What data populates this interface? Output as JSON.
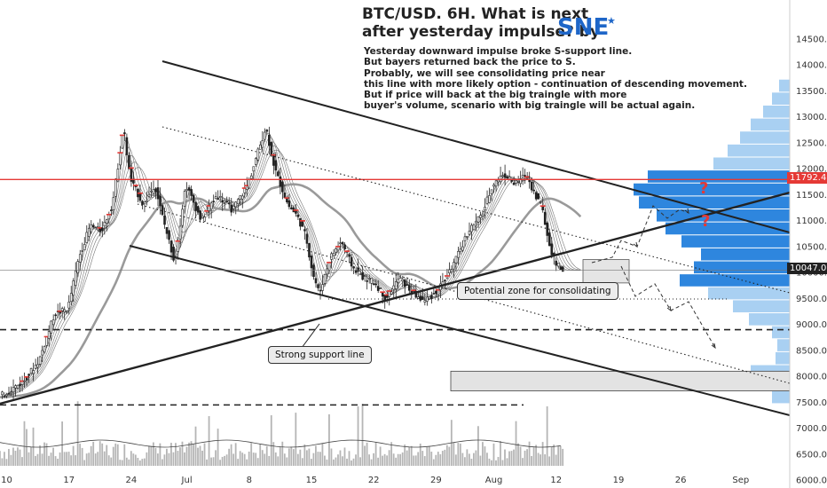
{
  "chart_data": {
    "type": "candlestick",
    "title_lines": [
      "BTC/USD. 6H. What is next",
      "after yesterday impulse? by"
    ],
    "brand": "SNE",
    "description_lines": [
      "Yesterday downward impulse broke S-support line.",
      "But bayers returned back the price to S.",
      "Probably, we will see consolidating price near",
      "this line with more likely option - continuation of descending movement.",
      "But if price will back at the big traingle with more",
      "buyer's volume, scenario with big traingle will be actual again."
    ],
    "y_ticks": [
      14500,
      14000,
      13500,
      13000,
      12500,
      12000,
      11500,
      11000,
      10500,
      10000,
      9500,
      9000,
      8500,
      8000,
      7500,
      7000,
      6500,
      6000
    ],
    "y_tick_labels": [
      "14500.0",
      "14000.0",
      "13500.0",
      "13000.0",
      "12500.0",
      "12000.0",
      "11500.0",
      "11000.0",
      "10500.0",
      "10000.0",
      "9500.0",
      "9000.0",
      "8500.0",
      "8000.0",
      "7500.0",
      "7000.0",
      "6500.0",
      "6000.0"
    ],
    "ylim": [
      5850,
      15250
    ],
    "x_ticks": [
      {
        "label": "10",
        "x": 0
      },
      {
        "label": "17",
        "x": 28
      },
      {
        "label": "24",
        "x": 56
      },
      {
        "label": "Jul",
        "x": 81
      },
      {
        "label": "8",
        "x": 109
      },
      {
        "label": "15",
        "x": 137
      },
      {
        "label": "22",
        "x": 165
      },
      {
        "label": "29",
        "x": 193
      },
      {
        "label": "Aug",
        "x": 219
      },
      {
        "label": "12",
        "x": 247
      },
      {
        "label": "19",
        "x": 275
      },
      {
        "label": "26",
        "x": 303
      },
      {
        "label": "Sep",
        "x": 330
      }
    ],
    "xlim": [
      -3,
      352
    ],
    "price_tags": [
      {
        "value": 11792.4,
        "label": "11792.4",
        "bg": "#e53935",
        "fg": "#ffffff"
      },
      {
        "value": 10047.0,
        "label": "10047.0",
        "bg": "#222222",
        "fg": "#ffffff"
      }
    ],
    "annotations": {
      "strong_support": "Strong support line",
      "consolidation": "Potential zone for consolidating"
    },
    "key_points": [
      {
        "x": -3,
        "y": 7600
      },
      {
        "x": 8,
        "y": 7900
      },
      {
        "x": 15,
        "y": 8300
      },
      {
        "x": 22,
        "y": 9200
      },
      {
        "x": 28,
        "y": 9300
      },
      {
        "x": 33,
        "y": 10300
      },
      {
        "x": 38,
        "y": 10900
      },
      {
        "x": 43,
        "y": 10800
      },
      {
        "x": 48,
        "y": 11300
      },
      {
        "x": 53,
        "y": 12800
      },
      {
        "x": 56,
        "y": 11800
      },
      {
        "x": 62,
        "y": 11300
      },
      {
        "x": 67,
        "y": 11700
      },
      {
        "x": 71,
        "y": 11000
      },
      {
        "x": 76,
        "y": 10200
      },
      {
        "x": 81,
        "y": 11700
      },
      {
        "x": 88,
        "y": 11000
      },
      {
        "x": 95,
        "y": 11500
      },
      {
        "x": 102,
        "y": 11200
      },
      {
        "x": 109,
        "y": 11700
      },
      {
        "x": 114,
        "y": 12400
      },
      {
        "x": 117,
        "y": 12800
      },
      {
        "x": 121,
        "y": 12000
      },
      {
        "x": 127,
        "y": 11300
      },
      {
        "x": 131,
        "y": 11100
      },
      {
        "x": 135,
        "y": 10700
      },
      {
        "x": 138,
        "y": 10000
      },
      {
        "x": 141,
        "y": 9600
      },
      {
        "x": 146,
        "y": 10300
      },
      {
        "x": 151,
        "y": 10600
      },
      {
        "x": 156,
        "y": 10100
      },
      {
        "x": 161,
        "y": 9900
      },
      {
        "x": 166,
        "y": 9800
      },
      {
        "x": 171,
        "y": 9500
      },
      {
        "x": 177,
        "y": 9900
      },
      {
        "x": 183,
        "y": 9600
      },
      {
        "x": 188,
        "y": 9450
      },
      {
        "x": 193,
        "y": 9600
      },
      {
        "x": 198,
        "y": 9900
      },
      {
        "x": 203,
        "y": 10300
      },
      {
        "x": 208,
        "y": 10800
      },
      {
        "x": 214,
        "y": 11100
      },
      {
        "x": 219,
        "y": 11700
      },
      {
        "x": 224,
        "y": 11900
      },
      {
        "x": 229,
        "y": 11700
      },
      {
        "x": 234,
        "y": 11900
      },
      {
        "x": 238,
        "y": 11500
      },
      {
        "x": 241,
        "y": 11300
      },
      {
        "x": 244,
        "y": 10600
      },
      {
        "x": 247,
        "y": 10200
      },
      {
        "x": 250,
        "y": 10047
      }
    ],
    "volume_profile": [
      {
        "price": 13600,
        "length": 12
      },
      {
        "price": 13350,
        "length": 20
      },
      {
        "price": 13100,
        "length": 30
      },
      {
        "price": 12850,
        "length": 44
      },
      {
        "price": 12600,
        "length": 56
      },
      {
        "price": 12350,
        "length": 70
      },
      {
        "price": 12100,
        "length": 86
      },
      {
        "price": 11850,
        "length": 160
      },
      {
        "price": 11600,
        "length": 176
      },
      {
        "price": 11350,
        "length": 170
      },
      {
        "price": 11100,
        "length": 150
      },
      {
        "price": 10850,
        "length": 140
      },
      {
        "price": 10600,
        "length": 122
      },
      {
        "price": 10350,
        "length": 100
      },
      {
        "price": 10100,
        "length": 108
      },
      {
        "price": 9850,
        "length": 124
      },
      {
        "price": 9600,
        "length": 92
      },
      {
        "price": 9350,
        "length": 64
      },
      {
        "price": 9100,
        "length": 46
      },
      {
        "price": 8850,
        "length": 20
      },
      {
        "price": 8600,
        "length": 14
      },
      {
        "price": 8350,
        "length": 16
      },
      {
        "price": 8100,
        "length": 44
      },
      {
        "price": 7850,
        "length": 54
      },
      {
        "price": 7600,
        "length": 20
      }
    ],
    "grid": false,
    "colors": {
      "resistance": "#e53935",
      "trendline": "#222222",
      "volume_profile_up": "#2e86de",
      "volume_profile_light": "#a9d0f2",
      "candles": "#222222",
      "moving_average": "#9a9a9a",
      "volume_bars": "#b5b5b5",
      "zone_fill": "#e3e3e3"
    }
  }
}
